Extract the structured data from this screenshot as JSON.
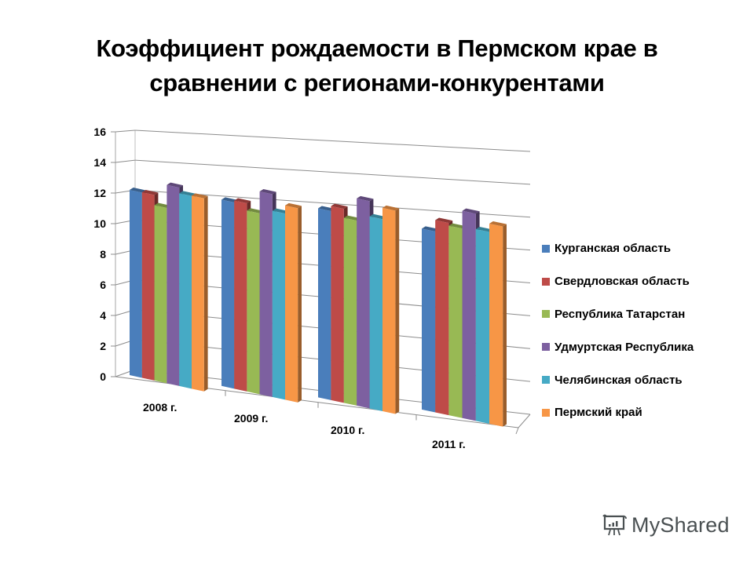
{
  "title": {
    "line1": "Коэффициент рождаемости в Пермском крае в",
    "line2": "сравнении с регионами-конкурентами"
  },
  "watermark": {
    "text": "MyShared",
    "icon": "presentation-board-icon"
  },
  "colors": {
    "kurgan": "#4a7ebb",
    "sverdlovsk": "#be4b48",
    "tatarstan": "#98b954",
    "udmurtia": "#7d60a0",
    "chelyabinsk": "#46aac5",
    "perm": "#f79646"
  },
  "legend": [
    {
      "label": "Курганская  область",
      "color": "#4a7ebb"
    },
    {
      "label": "Свердловская  область",
      "color": "#be4b48"
    },
    {
      "label": "Республика Татарстан",
      "color": "#98b954"
    },
    {
      "label": "Удмуртская  Республика",
      "color": "#7d60a0"
    },
    {
      "label": "Челябинская  область",
      "color": "#46aac5"
    },
    {
      "label": "Пермский  край",
      "color": "#f79646"
    }
  ],
  "axis": {
    "yticks": [
      "0",
      "2",
      "4",
      "6",
      "8",
      "10",
      "12",
      "14",
      "16"
    ],
    "xlabels": [
      "2008 г.",
      "2009 г.",
      "2010 г.",
      "2011 г."
    ]
  },
  "chart_data": {
    "type": "bar",
    "title": "Коэффициент рождаемости в Пермском крае в сравнении с регионами-конкурентами",
    "xlabel": "",
    "ylabel": "",
    "ylim": [
      0,
      16
    ],
    "grid": true,
    "legend_position": "right",
    "categories": [
      "2008 г.",
      "2009 г.",
      "2010 г.",
      "2011 г."
    ],
    "series": [
      {
        "name": "Курганская область",
        "values": [
          12.3,
          12.2,
          12.2,
          11.5
        ]
      },
      {
        "name": "Свердловская область",
        "values": [
          12.3,
          12.3,
          12.5,
          12.2
        ]
      },
      {
        "name": "Республика Татарстан",
        "values": [
          11.6,
          11.8,
          11.9,
          12.0
        ]
      },
      {
        "name": "Удмуртская Республика",
        "values": [
          13.1,
          13.2,
          13.3,
          13.1
        ]
      },
      {
        "name": "Челябинская область",
        "values": [
          12.7,
          12.1,
          12.3,
          12.1
        ]
      },
      {
        "name": "Пермский край",
        "values": [
          12.7,
          12.6,
          13.0,
          12.6
        ]
      }
    ]
  }
}
